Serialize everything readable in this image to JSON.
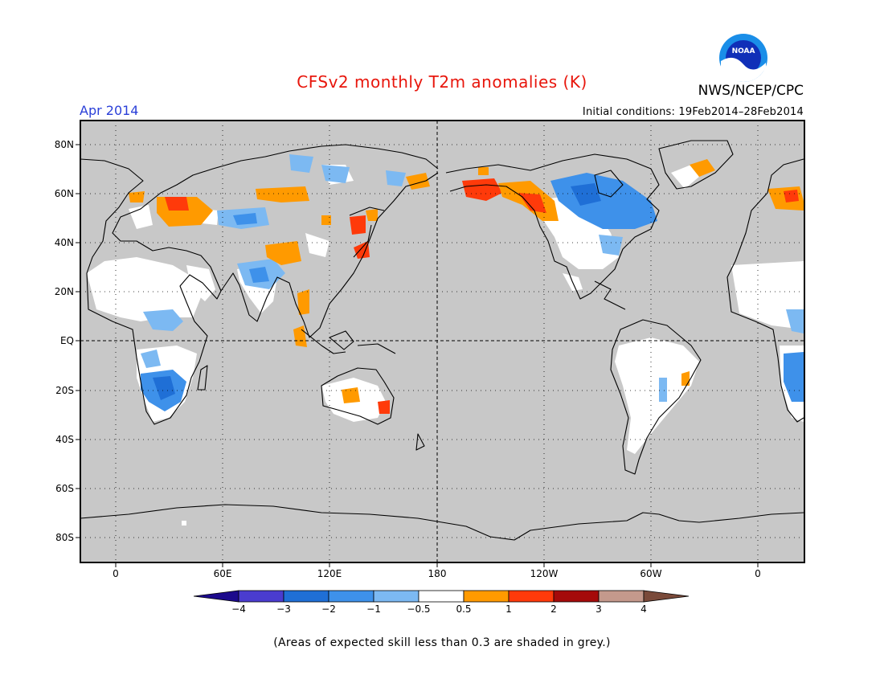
{
  "header": {
    "title": "CFSv2 monthly T2m anomalies (K)",
    "org": "NWS/NCEP/CPC",
    "month": "Apr 2014",
    "initial_conditions": "Initial conditions: 19Feb2014–28Feb2014",
    "logo_text": "NOAA"
  },
  "axes": {
    "lat_labels": [
      "80N",
      "60N",
      "40N",
      "20N",
      "EQ",
      "20S",
      "40S",
      "60S",
      "80S"
    ],
    "lon_labels": [
      "0",
      "60E",
      "120E",
      "180",
      "120W",
      "60W",
      "0"
    ]
  },
  "colorbar": {
    "labels": [
      "−4",
      "−3",
      "−2",
      "−1",
      "−0.5",
      "0.5",
      "1",
      "2",
      "3",
      "4"
    ],
    "colors": [
      "#1c0a8c",
      "#4a3ccf",
      "#1f6fd6",
      "#3e91ea",
      "#7cb9f2",
      "#ffffff",
      "#ff9a00",
      "#ff3a0a",
      "#a50a0a",
      "#c4998c",
      "#7a4a3a"
    ]
  },
  "footer": {
    "note": "(Areas of expected skill less than 0.3 are shaded in grey.)"
  },
  "style": {
    "ocean_grey": "#c8c8c8",
    "title_color": "#e8160c",
    "month_color": "#2a3fd8"
  }
}
